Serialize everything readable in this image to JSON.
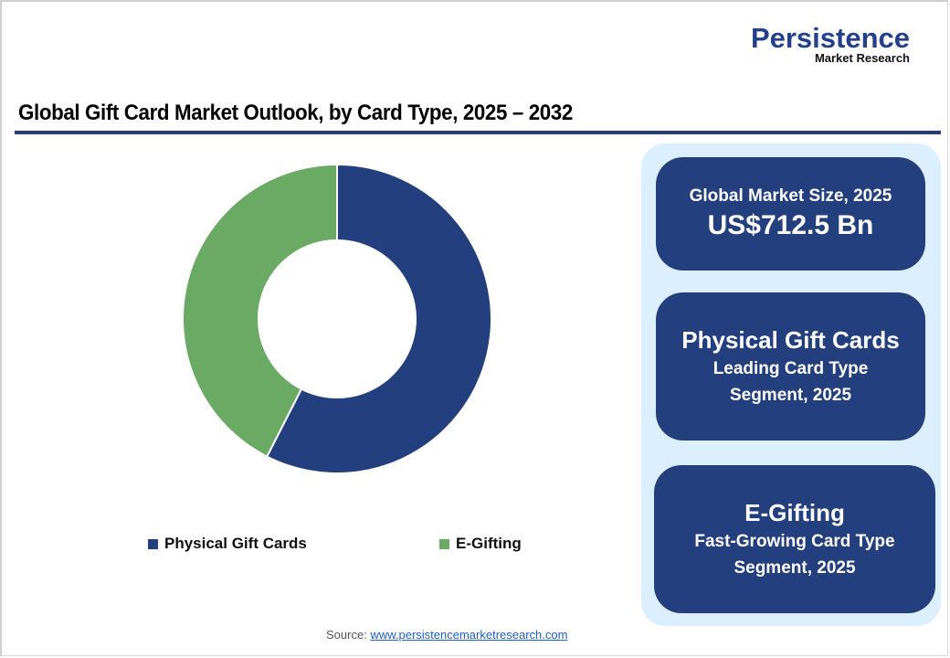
{
  "brand": {
    "name": "Persistence",
    "tagline": "Market Research"
  },
  "title": "Global Gift Card Market Outlook, by Card Type, 2025 – 2032",
  "colors": {
    "physical": "#243f7e",
    "egifting": "#6aaa64",
    "rule": "#253f75",
    "panel_bg": "#dcefff",
    "card_bg": "#243f7e"
  },
  "legend": [
    {
      "label": "Physical Gift Cards",
      "color": "#243f7e"
    },
    {
      "label": "E-Gifting",
      "color": "#6aaa64"
    }
  ],
  "cards": {
    "market_size": {
      "label": "Global Market Size, 2025",
      "value": "US$712.5 Bn"
    },
    "leading": {
      "heading": "Physical Gift Cards",
      "line1": "Leading Card Type",
      "line2": "Segment, 2025"
    },
    "fastest": {
      "heading": "E-Gifting",
      "line1": "Fast-Growing Card Type",
      "line2": "Segment, 2025"
    }
  },
  "source": {
    "label": "Source:",
    "link": "www.persistencemarketresearch.com"
  },
  "chart_data": {
    "type": "pie",
    "variant": "donut",
    "title": "Global Gift Card Market Outlook, by Card Type, 2025 – 2032",
    "categories": [
      "Physical Gift Cards",
      "E-Gifting"
    ],
    "values": [
      57.5,
      42.5
    ],
    "unit": "% share (estimated from slice angles)",
    "colors": [
      "#243f7e",
      "#6aaa64"
    ],
    "start_angle": "12 o'clock, clockwise",
    "legend_position": "bottom",
    "data_labels": false
  }
}
